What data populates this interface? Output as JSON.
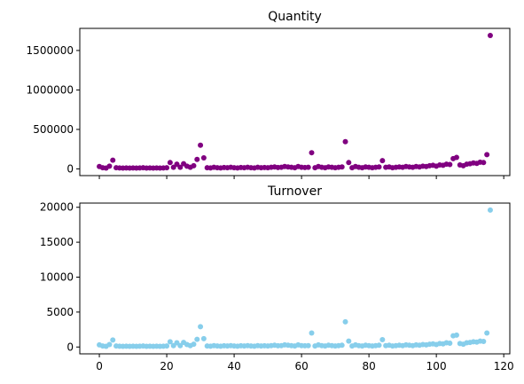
{
  "chart_data": [
    {
      "type": "scatter",
      "title": "Quantity",
      "xlabel": "",
      "ylabel": "",
      "xlim": [
        -5.8,
        121.8
      ],
      "ylim": [
        -85000,
        1780000
      ],
      "yticks": [
        0,
        500000,
        1000000,
        1500000
      ],
      "ytick_labels": [
        "0",
        "500000",
        "1000000",
        "1500000"
      ],
      "xticks": [
        0,
        20,
        40,
        60,
        80,
        100,
        120
      ],
      "xtick_labels_visible": false,
      "color": "#800080",
      "grid": false,
      "x": [
        0,
        1,
        2,
        3,
        4,
        5,
        6,
        7,
        8,
        9,
        10,
        11,
        12,
        13,
        14,
        15,
        16,
        17,
        18,
        19,
        20,
        21,
        22,
        23,
        24,
        25,
        26,
        27,
        28,
        29,
        30,
        31,
        32,
        33,
        34,
        35,
        36,
        37,
        38,
        39,
        40,
        41,
        42,
        43,
        44,
        45,
        46,
        47,
        48,
        49,
        50,
        51,
        52,
        53,
        54,
        55,
        56,
        57,
        58,
        59,
        60,
        61,
        62,
        63,
        64,
        65,
        66,
        67,
        68,
        69,
        70,
        71,
        72,
        73,
        74,
        75,
        76,
        77,
        78,
        79,
        80,
        81,
        82,
        83,
        84,
        85,
        86,
        87,
        88,
        89,
        90,
        91,
        92,
        93,
        94,
        95,
        96,
        97,
        98,
        99,
        100,
        101,
        102,
        103,
        104,
        105,
        106,
        107,
        108,
        109,
        110,
        111,
        112,
        113,
        114,
        115,
        116
      ],
      "y": [
        30000,
        15000,
        10000,
        35000,
        110000,
        15000,
        12000,
        10000,
        12000,
        10000,
        12000,
        10000,
        12000,
        15000,
        10000,
        12000,
        10000,
        12000,
        10000,
        12000,
        15000,
        80000,
        20000,
        60000,
        20000,
        65000,
        35000,
        20000,
        40000,
        120000,
        300000,
        140000,
        15000,
        12000,
        20000,
        15000,
        12000,
        18000,
        15000,
        20000,
        15000,
        12000,
        18000,
        15000,
        20000,
        15000,
        12000,
        20000,
        15000,
        18000,
        15000,
        20000,
        25000,
        18000,
        20000,
        30000,
        25000,
        20000,
        15000,
        30000,
        20000,
        18000,
        20000,
        205000,
        15000,
        30000,
        20000,
        15000,
        25000,
        20000,
        15000,
        20000,
        25000,
        345000,
        80000,
        15000,
        30000,
        20000,
        15000,
        25000,
        20000,
        15000,
        20000,
        25000,
        105000,
        20000,
        25000,
        15000,
        20000,
        25000,
        20000,
        30000,
        25000,
        20000,
        30000,
        25000,
        35000,
        30000,
        40000,
        45000,
        35000,
        50000,
        45000,
        60000,
        55000,
        130000,
        145000,
        50000,
        40000,
        60000,
        65000,
        75000,
        70000,
        85000,
        80000,
        180000,
        1690000
      ]
    },
    {
      "type": "scatter",
      "title": "Turnover",
      "xlabel": "",
      "ylabel": "",
      "xlim": [
        -5.8,
        121.8
      ],
      "ylim": [
        -980,
        20600
      ],
      "yticks": [
        0,
        5000,
        10000,
        15000,
        20000
      ],
      "ytick_labels": [
        "0",
        "5000",
        "10000",
        "15000",
        "20000"
      ],
      "xticks": [
        0,
        20,
        40,
        60,
        80,
        100,
        120
      ],
      "xtick_labels": [
        "0",
        "20",
        "40",
        "60",
        "80",
        "100",
        "120"
      ],
      "color": "#87ceeb",
      "grid": false,
      "x": [
        0,
        1,
        2,
        3,
        4,
        5,
        6,
        7,
        8,
        9,
        10,
        11,
        12,
        13,
        14,
        15,
        16,
        17,
        18,
        19,
        20,
        21,
        22,
        23,
        24,
        25,
        26,
        27,
        28,
        29,
        30,
        31,
        32,
        33,
        34,
        35,
        36,
        37,
        38,
        39,
        40,
        41,
        42,
        43,
        44,
        45,
        46,
        47,
        48,
        49,
        50,
        51,
        52,
        53,
        54,
        55,
        56,
        57,
        58,
        59,
        60,
        61,
        62,
        63,
        64,
        65,
        66,
        67,
        68,
        69,
        70,
        71,
        72,
        73,
        74,
        75,
        76,
        77,
        78,
        79,
        80,
        81,
        82,
        83,
        84,
        85,
        86,
        87,
        88,
        89,
        90,
        91,
        92,
        93,
        94,
        95,
        96,
        97,
        98,
        99,
        100,
        101,
        102,
        103,
        104,
        105,
        106,
        107,
        108,
        109,
        110,
        111,
        112,
        113,
        114,
        115,
        116
      ],
      "y": [
        300,
        150,
        100,
        350,
        1000,
        150,
        120,
        100,
        120,
        100,
        120,
        100,
        120,
        150,
        100,
        120,
        100,
        120,
        100,
        120,
        150,
        750,
        200,
        600,
        200,
        650,
        350,
        200,
        400,
        1100,
        2900,
        1200,
        150,
        120,
        200,
        150,
        120,
        180,
        150,
        200,
        150,
        120,
        180,
        150,
        200,
        150,
        120,
        200,
        150,
        180,
        150,
        200,
        250,
        180,
        200,
        300,
        250,
        200,
        150,
        300,
        200,
        180,
        200,
        2000,
        150,
        300,
        200,
        150,
        250,
        200,
        150,
        200,
        250,
        3600,
        850,
        150,
        300,
        200,
        150,
        250,
        200,
        150,
        200,
        250,
        1050,
        200,
        250,
        150,
        200,
        250,
        200,
        300,
        250,
        200,
        300,
        250,
        350,
        300,
        400,
        450,
        350,
        500,
        450,
        600,
        550,
        1600,
        1700,
        500,
        400,
        600,
        650,
        750,
        700,
        850,
        800,
        2000,
        19600
      ]
    }
  ]
}
